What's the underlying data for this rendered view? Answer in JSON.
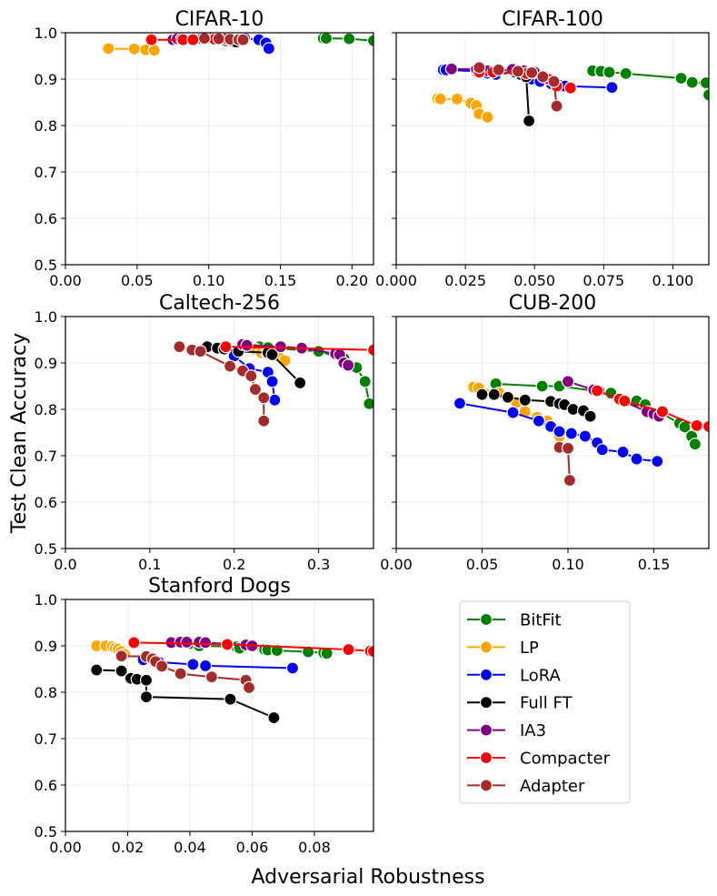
{
  "figure": {
    "ylabel": "Test Clean Accuracy",
    "xlabel": "Adversarial Robustness"
  },
  "legend": {
    "placement": "lower-right",
    "entries": [
      {
        "name": "BitFit",
        "color": "#008000"
      },
      {
        "name": "LP",
        "color": "#FFA500"
      },
      {
        "name": "LoRA",
        "color": "#0000FF"
      },
      {
        "name": "Full FT",
        "color": "#000000"
      },
      {
        "name": "IA3",
        "color": "#800080"
      },
      {
        "name": "Compacter",
        "color": "#FF0000"
      },
      {
        "name": "Adapter",
        "color": "#A52A2A"
      }
    ]
  },
  "chart_data": [
    {
      "type": "line",
      "title": "CIFAR-10",
      "xlim": [
        0,
        0.215
      ],
      "ylim": [
        0.5,
        1.0
      ],
      "xticks": [
        0.0,
        0.05,
        0.1,
        0.15,
        0.2
      ],
      "xtick_labels": [
        "0.00",
        "0.05",
        "0.10",
        "0.15",
        "0.20"
      ],
      "yticks": [
        0.5,
        0.6,
        0.7,
        0.8,
        0.9,
        1.0
      ],
      "ytick_labels": [
        "0.5",
        "0.6",
        "0.7",
        "0.8",
        "0.9",
        "1.0"
      ],
      "show_yticklabels": true,
      "series": [
        {
          "name": "BitFit",
          "x": [
            0.18,
            0.182,
            0.198,
            0.215
          ],
          "y": [
            0.988,
            0.988,
            0.987,
            0.983
          ]
        },
        {
          "name": "LP",
          "x": [
            0.03,
            0.048,
            0.056,
            0.062
          ],
          "y": [
            0.966,
            0.965,
            0.963,
            0.962
          ]
        },
        {
          "name": "LoRA",
          "x": [
            0.081,
            0.105,
            0.125,
            0.135,
            0.14,
            0.142
          ],
          "y": [
            0.987,
            0.988,
            0.988,
            0.985,
            0.978,
            0.966
          ]
        },
        {
          "name": "Full FT",
          "x": [
            0.105,
            0.112,
            0.117,
            0.119
          ],
          "y": [
            0.985,
            0.983,
            0.981,
            0.98
          ]
        },
        {
          "name": "IA3",
          "x": [
            0.075,
            0.078,
            0.081,
            0.088,
            0.095,
            0.1,
            0.112,
            0.122
          ],
          "y": [
            0.985,
            0.987,
            0.987,
            0.986,
            0.987,
            0.988,
            0.988,
            0.988
          ]
        },
        {
          "name": "Compacter",
          "x": [
            0.06,
            0.082,
            0.089,
            0.098,
            0.104,
            0.112,
            0.122
          ],
          "y": [
            0.985,
            0.985,
            0.985,
            0.987,
            0.986,
            0.987,
            0.987
          ]
        },
        {
          "name": "Adapter",
          "x": [
            0.097,
            0.107,
            0.115,
            0.121,
            0.124
          ],
          "y": [
            0.988,
            0.987,
            0.986,
            0.985,
            0.985
          ]
        }
      ]
    },
    {
      "type": "line",
      "title": "CIFAR-100",
      "xlim": [
        0,
        0.113
      ],
      "ylim": [
        0.5,
        1.0
      ],
      "xticks": [
        0.0,
        0.025,
        0.05,
        0.075,
        0.1
      ],
      "xtick_labels": [
        "0.000",
        "0.025",
        "0.050",
        "0.075",
        "0.100"
      ],
      "yticks": [
        0.5,
        0.6,
        0.7,
        0.8,
        0.9,
        1.0
      ],
      "ytick_labels": [
        "0.5",
        "0.6",
        "0.7",
        "0.8",
        "0.9",
        "1.0"
      ],
      "show_yticklabels": false,
      "series": [
        {
          "name": "BitFit",
          "x": [
            0.071,
            0.074,
            0.077,
            0.083,
            0.103,
            0.107,
            0.112,
            0.113
          ],
          "y": [
            0.918,
            0.917,
            0.915,
            0.912,
            0.902,
            0.893,
            0.892,
            0.866
          ]
        },
        {
          "name": "LP",
          "x": [
            0.015,
            0.016,
            0.022,
            0.027,
            0.029,
            0.03,
            0.033
          ],
          "y": [
            0.858,
            0.857,
            0.857,
            0.848,
            0.843,
            0.825,
            0.818
          ]
        },
        {
          "name": "LoRA",
          "x": [
            0.017,
            0.018,
            0.029,
            0.033,
            0.036,
            0.043,
            0.049,
            0.052,
            0.056,
            0.059,
            0.061,
            0.078
          ],
          "y": [
            0.92,
            0.92,
            0.917,
            0.913,
            0.91,
            0.915,
            0.9,
            0.895,
            0.89,
            0.887,
            0.885,
            0.882
          ]
        },
        {
          "name": "Full FT",
          "x": [
            0.043,
            0.045,
            0.047,
            0.048
          ],
          "y": [
            0.915,
            0.91,
            0.905,
            0.81
          ]
        },
        {
          "name": "IA3",
          "x": [
            0.02,
            0.029,
            0.033,
            0.042,
            0.046,
            0.05
          ],
          "y": [
            0.922,
            0.921,
            0.918,
            0.921,
            0.918,
            0.915
          ]
        },
        {
          "name": "Compacter",
          "x": [
            0.03,
            0.035,
            0.047,
            0.055,
            0.058,
            0.063
          ],
          "y": [
            0.915,
            0.915,
            0.912,
            0.9,
            0.885,
            0.881
          ]
        },
        {
          "name": "Adapter",
          "x": [
            0.03,
            0.037,
            0.044,
            0.049,
            0.053,
            0.057,
            0.058
          ],
          "y": [
            0.925,
            0.92,
            0.917,
            0.914,
            0.905,
            0.895,
            0.842
          ]
        }
      ]
    },
    {
      "type": "line",
      "title": "Caltech-256",
      "xlim": [
        0,
        0.365
      ],
      "ylim": [
        0.5,
        1.0
      ],
      "xticks": [
        0.0,
        0.1,
        0.2,
        0.3
      ],
      "xtick_labels": [
        "0.0",
        "0.1",
        "0.2",
        "0.3"
      ],
      "yticks": [
        0.5,
        0.6,
        0.7,
        0.8,
        0.9,
        1.0
      ],
      "ytick_labels": [
        "0.5",
        "0.6",
        "0.7",
        "0.8",
        "0.9",
        "1.0"
      ],
      "show_yticklabels": true,
      "series": [
        {
          "name": "BitFit",
          "x": [
            0.23,
            0.24,
            0.3,
            0.33,
            0.345,
            0.355,
            0.36
          ],
          "y": [
            0.935,
            0.933,
            0.925,
            0.91,
            0.89,
            0.86,
            0.812
          ]
        },
        {
          "name": "LP",
          "x": [
            0.21,
            0.225,
            0.232,
            0.238,
            0.246,
            0.252,
            0.26
          ],
          "y": [
            0.94,
            0.93,
            0.922,
            0.923,
            0.92,
            0.915,
            0.905
          ]
        },
        {
          "name": "LoRA",
          "x": [
            0.2,
            0.218,
            0.24,
            0.245,
            0.248
          ],
          "y": [
            0.915,
            0.888,
            0.88,
            0.86,
            0.82
          ]
        },
        {
          "name": "Full FT",
          "x": [
            0.168,
            0.18,
            0.188,
            0.205,
            0.24,
            0.245,
            0.278
          ],
          "y": [
            0.935,
            0.932,
            0.93,
            0.925,
            0.922,
            0.918,
            0.857
          ]
        },
        {
          "name": "IA3",
          "x": [
            0.21,
            0.215,
            0.255,
            0.28,
            0.32,
            0.325,
            0.33,
            0.335
          ],
          "y": [
            0.94,
            0.938,
            0.935,
            0.932,
            0.92,
            0.918,
            0.9,
            0.895
          ]
        },
        {
          "name": "Compacter",
          "x": [
            0.19,
            0.365
          ],
          "y": [
            0.935,
            0.928
          ]
        },
        {
          "name": "Adapter",
          "x": [
            0.135,
            0.15,
            0.16,
            0.195,
            0.21,
            0.22,
            0.225,
            0.235,
            0.235
          ],
          "y": [
            0.935,
            0.928,
            0.925,
            0.893,
            0.883,
            0.872,
            0.843,
            0.825,
            0.775
          ]
        }
      ]
    },
    {
      "type": "line",
      "title": "CUB-200",
      "xlim": [
        0,
        0.182
      ],
      "ylim": [
        0.5,
        1.0
      ],
      "xticks": [
        0.0,
        0.05,
        0.1,
        0.15
      ],
      "xtick_labels": [
        "0.00",
        "0.05",
        "0.10",
        "0.15"
      ],
      "yticks": [
        0.5,
        0.6,
        0.7,
        0.8,
        0.9,
        1.0
      ],
      "ytick_labels": [
        "0.5",
        "0.6",
        "0.7",
        "0.8",
        "0.9",
        "1.0"
      ],
      "show_yticklabels": false,
      "series": [
        {
          "name": "BitFit",
          "x": [
            0.058,
            0.085,
            0.095,
            0.125,
            0.14,
            0.145,
            0.165,
            0.168,
            0.172,
            0.174
          ],
          "y": [
            0.855,
            0.85,
            0.85,
            0.835,
            0.818,
            0.81,
            0.77,
            0.762,
            0.742,
            0.725
          ]
        },
        {
          "name": "LP",
          "x": [
            0.045,
            0.048,
            0.06,
            0.07,
            0.075,
            0.082,
            0.088,
            0.09,
            0.095
          ],
          "y": [
            0.848,
            0.846,
            0.835,
            0.815,
            0.795,
            0.783,
            0.775,
            0.76,
            0.742
          ]
        },
        {
          "name": "LoRA",
          "x": [
            0.037,
            0.068,
            0.083,
            0.09,
            0.095,
            0.102,
            0.11,
            0.117,
            0.12,
            0.132,
            0.14,
            0.152
          ],
          "y": [
            0.813,
            0.793,
            0.775,
            0.763,
            0.752,
            0.748,
            0.742,
            0.728,
            0.713,
            0.708,
            0.693,
            0.688
          ]
        },
        {
          "name": "Full FT",
          "x": [
            0.05,
            0.057,
            0.065,
            0.075,
            0.09,
            0.095,
            0.098,
            0.103,
            0.109,
            0.113
          ],
          "y": [
            0.832,
            0.832,
            0.826,
            0.82,
            0.817,
            0.812,
            0.81,
            0.8,
            0.797,
            0.785
          ]
        },
        {
          "name": "IA3",
          "x": [
            0.1,
            0.115,
            0.118,
            0.146,
            0.15,
            0.153
          ],
          "y": [
            0.86,
            0.842,
            0.84,
            0.795,
            0.79,
            0.785
          ]
        },
        {
          "name": "Compacter",
          "x": [
            0.117,
            0.13,
            0.133,
            0.155,
            0.175,
            0.182
          ],
          "y": [
            0.84,
            0.822,
            0.818,
            0.795,
            0.765,
            0.763
          ]
        },
        {
          "name": "Adapter",
          "x": [
            0.095,
            0.1,
            0.1,
            0.101
          ],
          "y": [
            0.718,
            0.717,
            0.716,
            0.647
          ]
        }
      ]
    },
    {
      "type": "line",
      "title": "Stanford Dogs",
      "xlim": [
        0,
        0.099
      ],
      "ylim": [
        0.5,
        1.0
      ],
      "xticks": [
        0.0,
        0.02,
        0.04,
        0.06,
        0.08
      ],
      "xtick_labels": [
        "0.00",
        "0.02",
        "0.04",
        "0.06",
        "0.08"
      ],
      "yticks": [
        0.5,
        0.6,
        0.7,
        0.8,
        0.9,
        1.0
      ],
      "ytick_labels": [
        "0.5",
        "0.6",
        "0.7",
        "0.8",
        "0.9",
        "1.0"
      ],
      "show_yticklabels": true,
      "series": [
        {
          "name": "BitFit",
          "x": [
            0.04,
            0.043,
            0.055,
            0.056,
            0.064,
            0.065,
            0.068,
            0.078,
            0.083,
            0.084
          ],
          "y": [
            0.905,
            0.9,
            0.898,
            0.895,
            0.892,
            0.891,
            0.89,
            0.887,
            0.885,
            0.884
          ]
        },
        {
          "name": "LP",
          "x": [
            0.01,
            0.013,
            0.015,
            0.016,
            0.017,
            0.018,
            0.019
          ],
          "y": [
            0.9,
            0.9,
            0.898,
            0.895,
            0.893,
            0.888,
            0.882
          ]
        },
        {
          "name": "LoRA",
          "x": [
            0.025,
            0.03,
            0.041,
            0.045,
            0.073
          ],
          "y": [
            0.87,
            0.865,
            0.86,
            0.857,
            0.852
          ]
        },
        {
          "name": "Full FT",
          "x": [
            0.01,
            0.018,
            0.021,
            0.023,
            0.026,
            0.026,
            0.053,
            0.067
          ],
          "y": [
            0.848,
            0.846,
            0.83,
            0.828,
            0.826,
            0.79,
            0.785,
            0.745
          ]
        },
        {
          "name": "IA3",
          "x": [
            0.034,
            0.037,
            0.039,
            0.043,
            0.045,
            0.058,
            0.06
          ],
          "y": [
            0.907,
            0.908,
            0.908,
            0.908,
            0.907,
            0.902,
            0.9
          ]
        },
        {
          "name": "Compacter",
          "x": [
            0.022,
            0.052,
            0.091,
            0.098,
            0.099
          ],
          "y": [
            0.907,
            0.903,
            0.892,
            0.889,
            0.888
          ]
        },
        {
          "name": "Adapter",
          "x": [
            0.018,
            0.026,
            0.028,
            0.029,
            0.031,
            0.037,
            0.047,
            0.058,
            0.059
          ],
          "y": [
            0.878,
            0.877,
            0.872,
            0.866,
            0.856,
            0.84,
            0.833,
            0.826,
            0.81
          ]
        }
      ]
    }
  ]
}
